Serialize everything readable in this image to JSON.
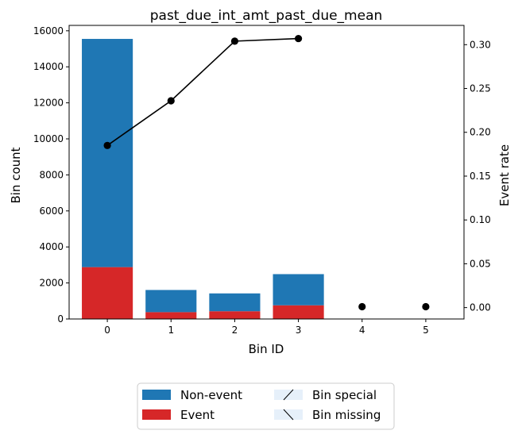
{
  "chart_data": {
    "type": "bar",
    "title": "past_due_int_amt_past_due_mean",
    "xlabel": "Bin ID",
    "ylabel": "Bin count",
    "y2label": "Event rate",
    "categories": [
      "0",
      "1",
      "2",
      "3",
      "4",
      "5"
    ],
    "series": [
      {
        "name": "Event",
        "type": "bar",
        "stack": "count",
        "color": "#d62728",
        "values": [
          2880,
          380,
          430,
          760,
          0,
          0
        ]
      },
      {
        "name": "Non-event",
        "type": "bar",
        "stack": "count",
        "color": "#1f77b4",
        "values": [
          12670,
          1230,
          990,
          1730,
          0,
          0
        ]
      },
      {
        "name": "Event rate",
        "type": "line",
        "axis": "right",
        "color": "#000000",
        "values": [
          0.185,
          0.236,
          0.304,
          0.307,
          null,
          null
        ]
      },
      {
        "name": "Event rate (special/missing)",
        "type": "scatter",
        "axis": "right",
        "color": "#000000",
        "x": [
          "4",
          "5"
        ],
        "values": [
          0.001,
          0.001
        ]
      }
    ],
    "ylim": [
      0,
      16300
    ],
    "yticks": [
      0,
      2000,
      4000,
      6000,
      8000,
      10000,
      12000,
      14000,
      16000
    ],
    "y2lim": [
      -0.013,
      0.322
    ],
    "y2ticks": [
      "0.00",
      "0.05",
      "0.10",
      "0.15",
      "0.20",
      "0.25",
      "0.30"
    ],
    "legend": {
      "placement": "bottom",
      "entries": [
        {
          "label": "Non-event",
          "style": "solid",
          "color": "#1f77b4"
        },
        {
          "label": "Event",
          "style": "solid",
          "color": "#d62728"
        },
        {
          "label": "Bin special",
          "style": "hatch-forward",
          "color": "#e6f0fa"
        },
        {
          "label": "Bin missing",
          "style": "hatch-back",
          "color": "#e6f0fa"
        }
      ]
    }
  }
}
